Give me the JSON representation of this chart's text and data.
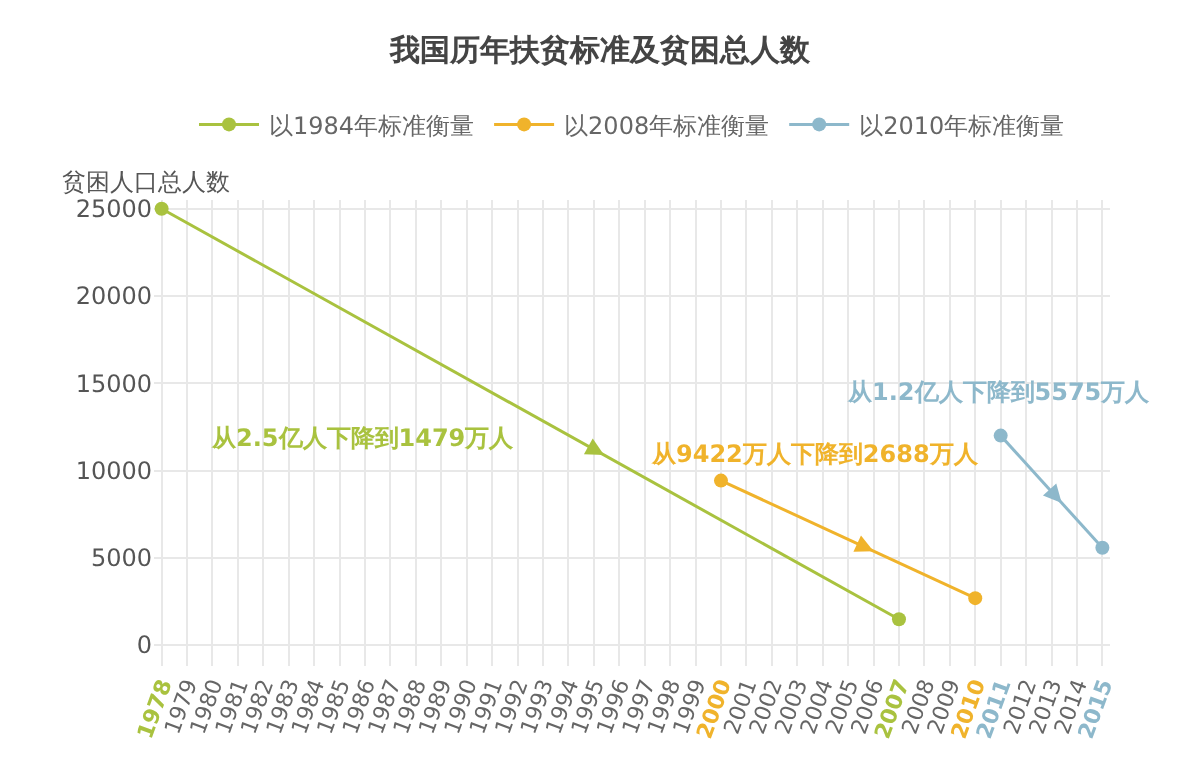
{
  "chart_data": {
    "type": "line",
    "title": "我国历年扶贫标准及贫困总人数",
    "ylabel": "贫困人口总人数",
    "series": [
      {
        "name": "以1984年标准衡量",
        "color": "#a9c23f",
        "x": [
          1978,
          2007
        ],
        "values": [
          25000,
          1479
        ]
      },
      {
        "name": "以2008年标准衡量",
        "color": "#f0b32b",
        "x": [
          2000,
          2010
        ],
        "values": [
          9422,
          2688
        ]
      },
      {
        "name": "以2010年标准衡量",
        "color": "#8db8cb",
        "x": [
          2011,
          2015
        ],
        "values": [
          12000,
          5575
        ]
      }
    ],
    "annotations": [
      "从2.5亿人下降到1479万人",
      "从9422万人下降到2688万人",
      "从1.2亿人下降到5575万人"
    ],
    "xlim": [
      1977.7,
      2015.3
    ],
    "xticks": [
      1978,
      1979,
      1980,
      1981,
      1982,
      1983,
      1984,
      1985,
      1986,
      1987,
      1988,
      1989,
      1990,
      1991,
      1992,
      1993,
      1994,
      1995,
      1996,
      1997,
      1998,
      1999,
      2000,
      2001,
      2002,
      2003,
      2004,
      2005,
      2006,
      2007,
      2008,
      2009,
      2010,
      2011,
      2012,
      2013,
      2014,
      2015
    ],
    "ylim": [
      -1200,
      25500
    ],
    "yticks": [
      0,
      5000,
      10000,
      15000,
      20000,
      25000
    ],
    "grid": true,
    "legend": "top",
    "marker": "circle",
    "line_style": "solid"
  }
}
